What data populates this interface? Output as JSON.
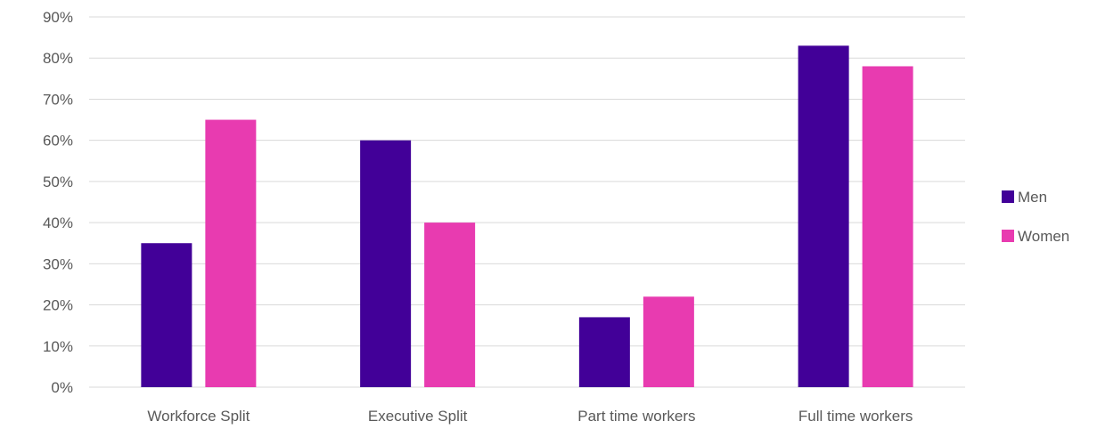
{
  "chart_data": {
    "type": "bar",
    "categories": [
      "Workforce Split",
      "Executive Split",
      "Part time workers",
      "Full time workers"
    ],
    "series": [
      {
        "name": "Men",
        "values": [
          35,
          60,
          17,
          83
        ],
        "color": "#420098"
      },
      {
        "name": "Women",
        "values": [
          65,
          40,
          22,
          78
        ],
        "color": "#e83bb0"
      }
    ],
    "yticks": [
      "0%",
      "10%",
      "20%",
      "30%",
      "40%",
      "50%",
      "60%",
      "70%",
      "80%",
      "90%"
    ],
    "ylim": [
      0,
      90
    ],
    "grid": true,
    "legend_position": "right",
    "title": "",
    "xlabel": "",
    "ylabel": ""
  }
}
